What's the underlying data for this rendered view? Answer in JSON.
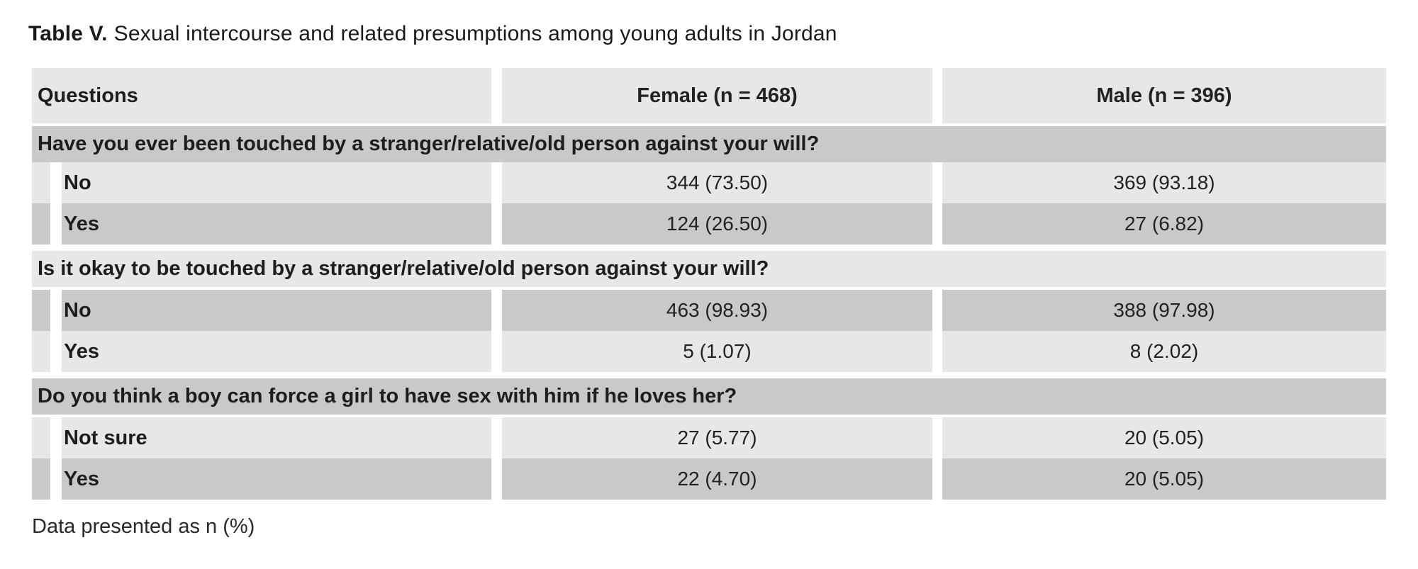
{
  "title": {
    "label": "Table V.",
    "text": "Sexual intercourse and related presumptions among young adults in Jordan"
  },
  "table": {
    "columns": [
      "Questions",
      "Female (n = 468)",
      "Male (n = 396)"
    ],
    "sections": [
      {
        "question": "Have you ever been touched by a stranger/relative/old person against your will?",
        "rows": [
          {
            "label": "No",
            "female": "344 (73.50)",
            "male": "369 (93.18)"
          },
          {
            "label": "Yes",
            "female": "124 (26.50)",
            "male": "27 (6.82)"
          }
        ]
      },
      {
        "question": "Is it okay to be touched by a stranger/relative/old person against your will?",
        "rows": [
          {
            "label": "No",
            "female": "463 (98.93)",
            "male": "388 (97.98)"
          },
          {
            "label": "Yes",
            "female": "5 (1.07)",
            "male": "8 (2.02)"
          }
        ]
      },
      {
        "question": "Do you think a boy can force a girl to have sex with him if he loves her?",
        "rows": [
          {
            "label": "Not sure",
            "female": "27 (5.77)",
            "male": "20 (5.05)"
          },
          {
            "label": "Yes",
            "female": "22 (4.70)",
            "male": "20 (5.05)"
          }
        ]
      }
    ],
    "footnote": "Data presented as n (%)"
  },
  "colors": {
    "row_light": "#e7e7e7",
    "row_dark": "#c9c9c9",
    "page_background": "#ffffff",
    "text": "#1d1d1d"
  }
}
